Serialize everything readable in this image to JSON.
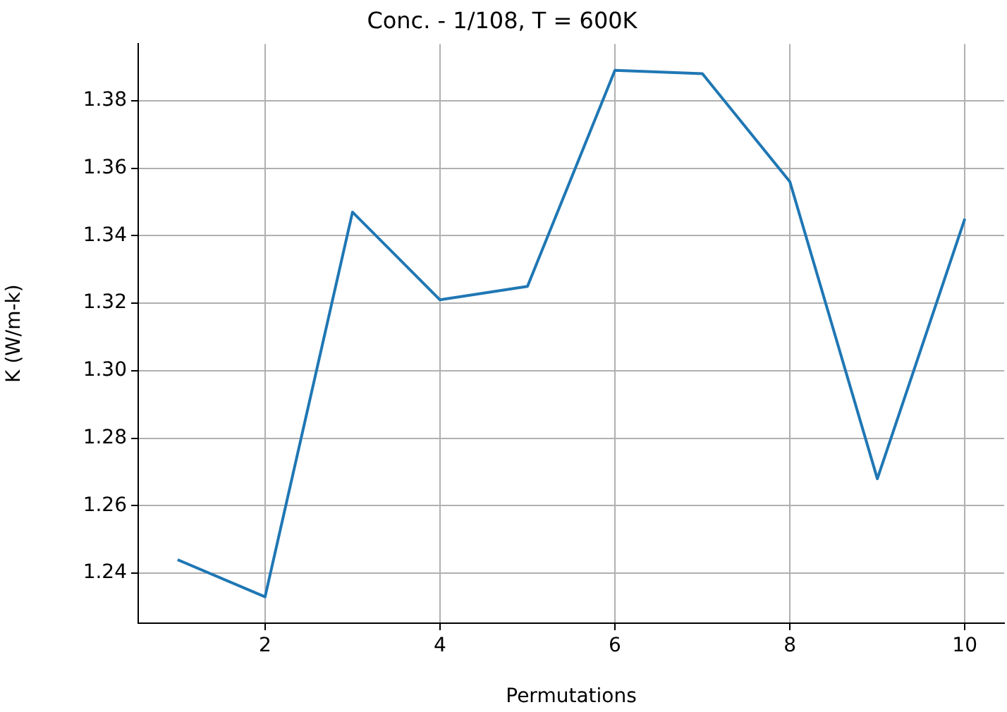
{
  "chart_data": {
    "type": "line",
    "title": "Conc. - 1/108, T = 600K",
    "xlabel": "Permutations",
    "ylabel": "K (W/m-k)",
    "x": [
      1,
      2,
      3,
      4,
      5,
      6,
      7,
      8,
      9,
      10
    ],
    "series": [
      {
        "color": "#1f77b4",
        "values": [
          1.244,
          1.233,
          1.347,
          1.321,
          1.325,
          1.389,
          1.388,
          1.356,
          1.268,
          1.345
        ]
      }
    ],
    "xlim": [
      0.55,
      10.45
    ],
    "xticks": [
      2,
      4,
      6,
      8,
      10
    ],
    "ylim": [
      1.2252,
      1.3968
    ],
    "yticks": [
      {
        "value": 1.24,
        "label": "1.24"
      },
      {
        "value": 1.26,
        "label": "1.26"
      },
      {
        "value": 1.28,
        "label": "1.28"
      },
      {
        "value": 1.3,
        "label": "1.30"
      },
      {
        "value": 1.32,
        "label": "1.32"
      },
      {
        "value": 1.34,
        "label": "1.34"
      },
      {
        "value": 1.36,
        "label": "1.36"
      },
      {
        "value": 1.38,
        "label": "1.38"
      }
    ],
    "grid": true,
    "legend": false,
    "marker": "none",
    "line_style": "solid"
  }
}
